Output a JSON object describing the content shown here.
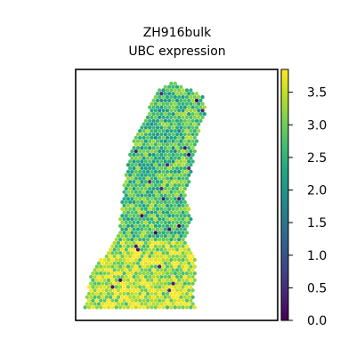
{
  "chart_data": {
    "type": "scatter",
    "title": "ZH916bulk",
    "subtitle": "UBC expression",
    "xlabel": "",
    "ylabel": "",
    "colorbar": {
      "cmap": "viridis",
      "range": [
        0.0,
        3.85
      ],
      "ticks": [
        0.0,
        0.5,
        1.0,
        1.5,
        2.0,
        2.5,
        3.0,
        3.5
      ],
      "tick_labels": [
        "0.0",
        "0.5",
        "1.0",
        "1.5",
        "2.0",
        "2.5",
        "3.0",
        "3.5"
      ]
    },
    "spots": {
      "shape": "tissue section on hexagonal spot grid",
      "x_range": [
        0,
        100
      ],
      "y_range": [
        0,
        100
      ],
      "outline": [
        [
          0,
          0
        ],
        [
          60,
          0
        ],
        [
          59,
          8
        ],
        [
          60,
          14
        ],
        [
          60,
          22
        ],
        [
          55,
          30
        ],
        [
          58,
          40
        ],
        [
          55,
          50
        ],
        [
          58,
          60
        ],
        [
          60,
          70
        ],
        [
          62,
          78
        ],
        [
          66,
          88
        ],
        [
          64,
          94
        ],
        [
          56,
          97
        ],
        [
          48,
          100
        ],
        [
          38,
          96
        ],
        [
          34,
          86
        ],
        [
          28,
          78
        ],
        [
          24,
          68
        ],
        [
          22,
          58
        ],
        [
          20,
          44
        ],
        [
          18,
          32
        ],
        [
          12,
          25
        ],
        [
          6,
          20
        ],
        [
          2,
          12
        ]
      ],
      "holes": [
        [
          [
            60,
            60
          ],
          [
            64,
            60
          ],
          [
            66,
            66
          ],
          [
            62,
            70
          ],
          [
            59,
            66
          ]
        ]
      ],
      "typical_value": 2.8,
      "low_cluster_region": [
        18,
        60,
        52,
        100
      ],
      "high_cluster_region": [
        0,
        0,
        60,
        30
      ],
      "outlier_fraction": 0.02
    }
  }
}
